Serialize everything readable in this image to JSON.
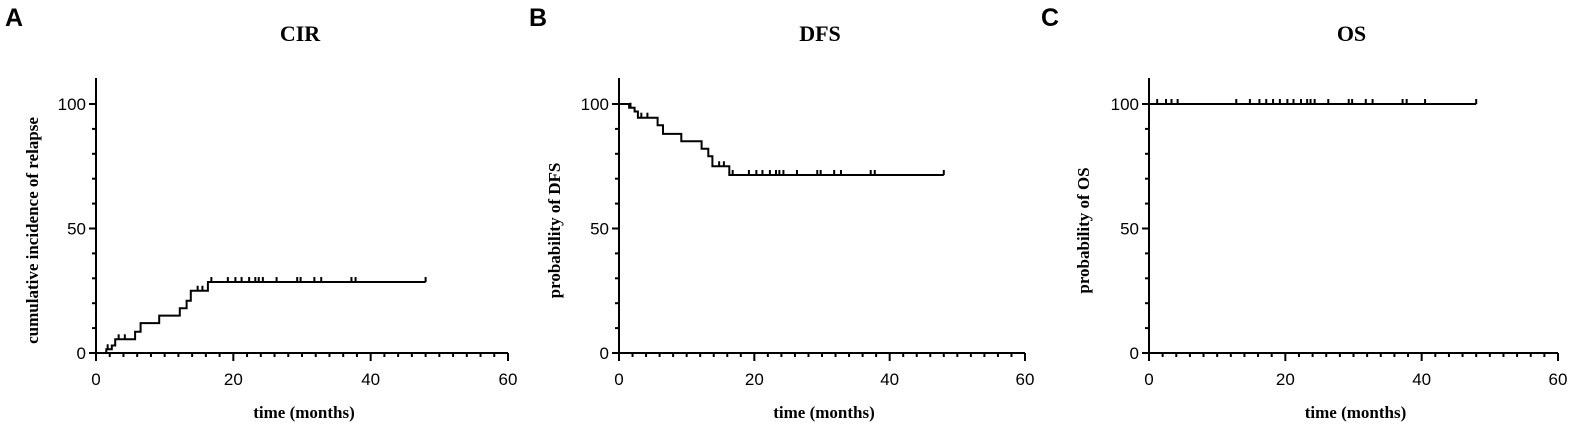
{
  "chart_data": [
    {
      "panel": "A",
      "type": "line",
      "title": "CIR",
      "xlabel": "time (months)",
      "ylabel": "cumulative incidence of relapse",
      "xlim": [
        0,
        60
      ],
      "ylim": [
        0,
        100
      ],
      "xticks": [
        0,
        20,
        40,
        60
      ],
      "yticks": [
        0,
        50,
        100
      ],
      "series": [
        {
          "steps": [
            [
              0,
              0
            ],
            [
              1.5,
              0
            ],
            [
              1.5,
              1.5
            ],
            [
              2.3,
              1.5
            ],
            [
              2.3,
              3
            ],
            [
              2.8,
              3
            ],
            [
              2.8,
              5.5
            ],
            [
              5.7,
              5.5
            ],
            [
              5.7,
              8.5
            ],
            [
              6.5,
              8.5
            ],
            [
              6.5,
              12
            ],
            [
              9.2,
              12
            ],
            [
              9.2,
              15
            ],
            [
              12.2,
              15
            ],
            [
              12.2,
              18
            ],
            [
              13.2,
              18
            ],
            [
              13.2,
              21
            ],
            [
              13.8,
              21
            ],
            [
              13.8,
              25
            ],
            [
              16.3,
              25
            ],
            [
              16.3,
              28.5
            ],
            [
              48,
              28.5
            ]
          ],
          "censored": [
            [
              1.7,
              1.5
            ],
            [
              3.3,
              5.5
            ],
            [
              4.2,
              5.5
            ],
            [
              14.8,
              25
            ],
            [
              15.5,
              25
            ],
            [
              16.8,
              28.5
            ],
            [
              19.2,
              28.5
            ],
            [
              20.3,
              28.5
            ],
            [
              21.2,
              28.5
            ],
            [
              22.3,
              28.5
            ],
            [
              23.2,
              28.5
            ],
            [
              23.7,
              28.5
            ],
            [
              24.3,
              28.5
            ],
            [
              26.3,
              28.5
            ],
            [
              29.3,
              28.5
            ],
            [
              29.8,
              28.5
            ],
            [
              31.8,
              28.5
            ],
            [
              32.8,
              28.5
            ],
            [
              37.2,
              28.5
            ],
            [
              37.8,
              28.5
            ],
            [
              48,
              28.5
            ]
          ]
        }
      ]
    },
    {
      "panel": "B",
      "type": "line",
      "title": "DFS",
      "xlabel": "time (months)",
      "ylabel": "probability of DFS",
      "xlim": [
        0,
        60
      ],
      "ylim": [
        0,
        100
      ],
      "xticks": [
        0,
        20,
        40,
        60
      ],
      "yticks": [
        0,
        50,
        100
      ],
      "series": [
        {
          "steps": [
            [
              0,
              100
            ],
            [
              1.5,
              100
            ],
            [
              1.5,
              98.5
            ],
            [
              2.3,
              98.5
            ],
            [
              2.3,
              97
            ],
            [
              2.8,
              97
            ],
            [
              2.8,
              94.5
            ],
            [
              5.7,
              94.5
            ],
            [
              5.7,
              91.5
            ],
            [
              6.5,
              91.5
            ],
            [
              6.5,
              88
            ],
            [
              9.2,
              88
            ],
            [
              9.2,
              85
            ],
            [
              12.2,
              85
            ],
            [
              12.2,
              82
            ],
            [
              13.2,
              82
            ],
            [
              13.2,
              79
            ],
            [
              13.8,
              79
            ],
            [
              13.8,
              75
            ],
            [
              16.3,
              75
            ],
            [
              16.3,
              71.5
            ],
            [
              48,
              71.5
            ]
          ],
          "censored": [
            [
              1.7,
              98.5
            ],
            [
              3.3,
              94.5
            ],
            [
              4.2,
              94.5
            ],
            [
              14.8,
              75
            ],
            [
              15.5,
              75
            ],
            [
              16.8,
              71.5
            ],
            [
              19.2,
              71.5
            ],
            [
              20.3,
              71.5
            ],
            [
              21.2,
              71.5
            ],
            [
              22.3,
              71.5
            ],
            [
              23.2,
              71.5
            ],
            [
              23.7,
              71.5
            ],
            [
              24.3,
              71.5
            ],
            [
              26.3,
              71.5
            ],
            [
              29.3,
              71.5
            ],
            [
              29.8,
              71.5
            ],
            [
              31.8,
              71.5
            ],
            [
              32.8,
              71.5
            ],
            [
              37.2,
              71.5
            ],
            [
              37.8,
              71.5
            ],
            [
              48,
              71.5
            ]
          ]
        }
      ]
    },
    {
      "panel": "C",
      "type": "line",
      "title": "OS",
      "xlabel": "time (months)",
      "ylabel": "probability of OS",
      "xlim": [
        0,
        60
      ],
      "ylim": [
        0,
        100
      ],
      "xticks": [
        0,
        20,
        40,
        60
      ],
      "yticks": [
        0,
        50,
        100
      ],
      "series": [
        {
          "steps": [
            [
              0,
              100
            ],
            [
              48,
              100
            ]
          ],
          "censored": [
            [
              1.2,
              100
            ],
            [
              2.5,
              100
            ],
            [
              3.3,
              100
            ],
            [
              4.2,
              100
            ],
            [
              12.8,
              100
            ],
            [
              14.8,
              100
            ],
            [
              16.2,
              100
            ],
            [
              17.2,
              100
            ],
            [
              18.2,
              100
            ],
            [
              19.2,
              100
            ],
            [
              20.3,
              100
            ],
            [
              21.2,
              100
            ],
            [
              22.3,
              100
            ],
            [
              23.2,
              100
            ],
            [
              23.7,
              100
            ],
            [
              24.3,
              100
            ],
            [
              26.3,
              100
            ],
            [
              29.3,
              100
            ],
            [
              29.8,
              100
            ],
            [
              31.8,
              100
            ],
            [
              32.8,
              100
            ],
            [
              37.2,
              100
            ],
            [
              37.8,
              100
            ],
            [
              40.5,
              100
            ],
            [
              48,
              100
            ]
          ]
        }
      ]
    }
  ]
}
